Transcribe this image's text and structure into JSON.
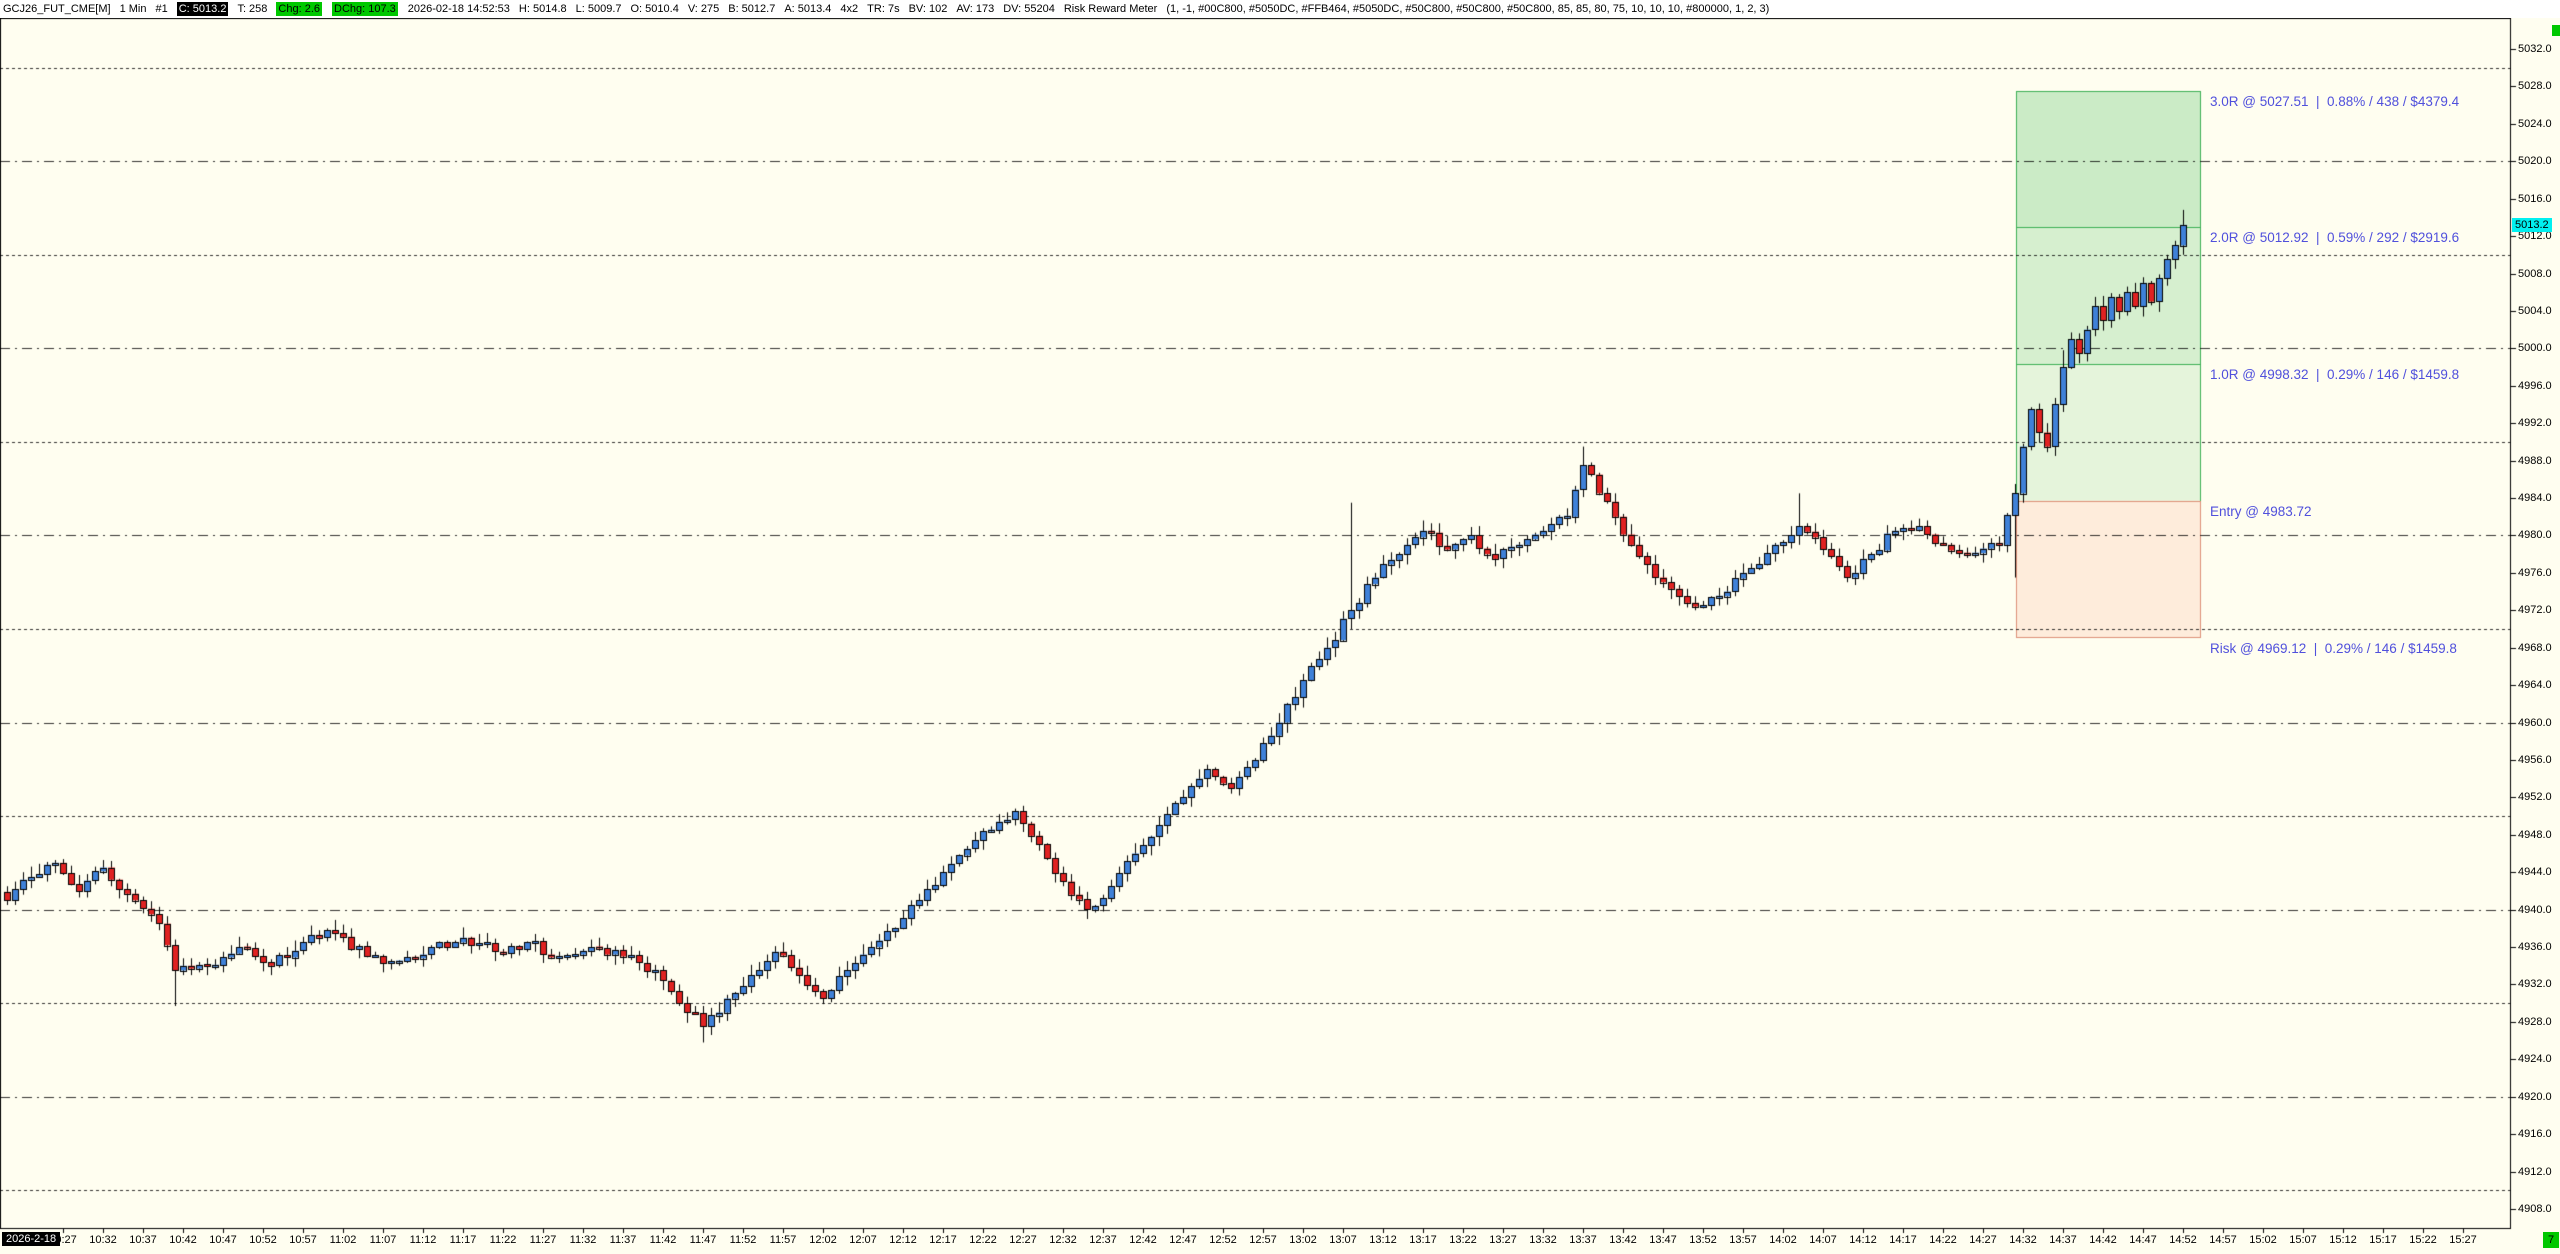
{
  "header": {
    "segments": [
      {
        "text": "GCJ26_FUT_CME[M]",
        "style": "plain"
      },
      {
        "text": "1 Min",
        "style": "plain"
      },
      {
        "text": "#1",
        "style": "plain"
      },
      {
        "text": "C: 5013.2",
        "style": "inverse"
      },
      {
        "text": "T: 258",
        "style": "plain"
      },
      {
        "text": "Chg: 2.6",
        "style": "green"
      },
      {
        "text": "DChg: 107.3",
        "style": "green"
      },
      {
        "text": "2026-02-18 14:52:53",
        "style": "plain"
      },
      {
        "text": "H: 5014.8",
        "style": "plain"
      },
      {
        "text": "L: 5009.7",
        "style": "plain"
      },
      {
        "text": "O: 5010.4",
        "style": "plain"
      },
      {
        "text": "V: 275",
        "style": "plain"
      },
      {
        "text": "B: 5012.7",
        "style": "plain"
      },
      {
        "text": "A: 5013.4",
        "style": "plain"
      },
      {
        "text": "4x2",
        "style": "plain"
      },
      {
        "text": "TR: 7s",
        "style": "plain"
      },
      {
        "text": "BV: 102",
        "style": "plain"
      },
      {
        "text": "AV: 173",
        "style": "plain"
      },
      {
        "text": "DV: 55204",
        "style": "plain"
      },
      {
        "text": "Risk Reward Meter",
        "style": "plain"
      },
      {
        "text": "(1, -1, #00C800, #5050DC, #FFB464, #5050DC, #50C800, #50C800, #50C800, 85, 85, 80, 75, 10, 10, 10, #800000, 1, 2, 3)",
        "style": "plain"
      }
    ]
  },
  "y_axis": {
    "current_price_label": "5013.2",
    "ticks": [
      "5032.0",
      "5028.0",
      "5024.0",
      "5020.0",
      "5016.0",
      "5012.0",
      "5008.0",
      "5004.0",
      "5000.0",
      "4996.0",
      "4992.0",
      "4988.0",
      "4984.0",
      "4980.0",
      "4976.0",
      "4972.0",
      "4968.0",
      "4964.0",
      "4960.0",
      "4956.0",
      "4952.0",
      "4948.0",
      "4944.0",
      "4940.0",
      "4936.0",
      "4932.0",
      "4928.0",
      "4924.0",
      "4920.0",
      "4916.0",
      "4912.0",
      "4908.0"
    ]
  },
  "x_axis": {
    "date_label": "2026-2-18",
    "countdown": "7",
    "time_ticks": [
      "10:27",
      "10:32",
      "10:37",
      "10:42",
      "10:47",
      "10:52",
      "10:57",
      "11:02",
      "11:07",
      "11:12",
      "11:17",
      "11:22",
      "11:27",
      "11:32",
      "11:37",
      "11:42",
      "11:47",
      "11:52",
      "11:57",
      "12:02",
      "12:07",
      "12:12",
      "12:17",
      "12:22",
      "12:27",
      "12:32",
      "12:37",
      "12:42",
      "12:47",
      "12:52",
      "12:57",
      "13:02",
      "13:07",
      "13:12",
      "13:17",
      "13:22",
      "13:27",
      "13:32",
      "13:37",
      "13:42",
      "13:47",
      "13:52",
      "13:57",
      "14:02",
      "14:07",
      "14:12",
      "14:17",
      "14:22",
      "14:27",
      "14:32",
      "14:37",
      "14:42",
      "14:47",
      "14:52",
      "14:57",
      "15:02",
      "15:07",
      "15:12",
      "15:17",
      "15:22",
      "15:27"
    ]
  },
  "risk_reward": {
    "entry_price": 4983.72,
    "risk_price": 4969.12,
    "r1_price": 4998.32,
    "r2_price": 5012.92,
    "r3_price": 5027.51,
    "labels": {
      "r3": "3.0R @ 5027.51  |  0.88% / 438 / $4379.4",
      "r2": "2.0R @ 5012.92  |  0.59% / 292 / $2919.6",
      "r1": "1.0R @ 4998.32  |  0.29% / 146 / $1459.8",
      "entry": "Entry @ 4983.72",
      "risk": "Risk @ 4969.12  |  0.29% / 146 / $1459.8"
    },
    "zone_fill_colors": [
      "rgba(70,185,90,0.14)",
      "rgba(70,185,90,0.22)",
      "rgba(70,185,90,0.28)"
    ],
    "zone_border_color": "#3CB054",
    "risk_fill_color": "rgba(250,130,95,0.14)",
    "risk_border_color": "#DD9078"
  },
  "chart_data": {
    "type": "candlestick",
    "title": "GCJ26_FUT_CME[M] 1 Min",
    "symbol": "GCJ26_FUT_CME[M]",
    "interval": "1 Min",
    "session_date": "2026-02-18",
    "first_bar_time": "10:20",
    "last_bar_time": "14:52",
    "bar_minutes": 1,
    "bar_count": 273,
    "last_close": 5013.2,
    "ohlc_last_bar": {
      "open": 5010.4,
      "high": 5014.8,
      "low": 5009.7,
      "close": 5013.2
    },
    "price_axis": {
      "min": 4906,
      "max": 5036,
      "tick_step": 4,
      "gridline_step": 10
    },
    "legend_position": "none",
    "grid": true,
    "close_waypoints": [
      [
        0,
        4941
      ],
      [
        3,
        4943.5
      ],
      [
        6,
        4945
      ],
      [
        9,
        4942
      ],
      [
        12,
        4944.5
      ],
      [
        16,
        4941
      ],
      [
        19,
        4938.5
      ],
      [
        21,
        4933.5
      ],
      [
        25,
        4934
      ],
      [
        29,
        4936
      ],
      [
        33,
        4934
      ],
      [
        37,
        4936.5
      ],
      [
        41,
        4937.5
      ],
      [
        45,
        4935
      ],
      [
        49,
        4934.5
      ],
      [
        53,
        4936
      ],
      [
        57,
        4937
      ],
      [
        61,
        4935.5
      ],
      [
        65,
        4936.5
      ],
      [
        69,
        4935
      ],
      [
        73,
        4936
      ],
      [
        77,
        4935
      ],
      [
        81,
        4933.5
      ],
      [
        84,
        4930
      ],
      [
        87,
        4927.5
      ],
      [
        90,
        4930.5
      ],
      [
        93,
        4933
      ],
      [
        96,
        4935.5
      ],
      [
        99,
        4933
      ],
      [
        102,
        4930.5
      ],
      [
        105,
        4933.5
      ],
      [
        108,
        4936
      ],
      [
        111,
        4938
      ],
      [
        114,
        4941
      ],
      [
        117,
        4944
      ],
      [
        120,
        4946.5
      ],
      [
        123,
        4948.5
      ],
      [
        126,
        4950.5
      ],
      [
        129,
        4947
      ],
      [
        132,
        4943
      ],
      [
        135,
        4940
      ],
      [
        138,
        4942.5
      ],
      [
        141,
        4946
      ],
      [
        144,
        4949
      ],
      [
        147,
        4952
      ],
      [
        150,
        4955
      ],
      [
        153,
        4953
      ],
      [
        156,
        4956
      ],
      [
        159,
        4960
      ],
      [
        162,
        4964.5
      ],
      [
        165,
        4968
      ],
      [
        168,
        4972
      ],
      [
        171,
        4975.5
      ],
      [
        174,
        4978
      ],
      [
        177,
        4980.5
      ],
      [
        180,
        4978.5
      ],
      [
        183,
        4980
      ],
      [
        186,
        4977.5
      ],
      [
        189,
        4979
      ],
      [
        192,
        4980.5
      ],
      [
        195,
        4982
      ],
      [
        197,
        4987.5
      ],
      [
        199,
        4984.5
      ],
      [
        201,
        4982
      ],
      [
        203,
        4979
      ],
      [
        206,
        4975.5
      ],
      [
        209,
        4973.5
      ],
      [
        212,
        4972.5
      ],
      [
        215,
        4974
      ],
      [
        218,
        4976.5
      ],
      [
        221,
        4979
      ],
      [
        224,
        4981
      ],
      [
        227,
        4978.5
      ],
      [
        230,
        4975.5
      ],
      [
        233,
        4978
      ],
      [
        236,
        4980.5
      ],
      [
        239,
        4981
      ],
      [
        242,
        4979
      ],
      [
        245,
        4978
      ],
      [
        249,
        4979
      ],
      [
        251,
        4984.5
      ],
      [
        252,
        4989.5
      ],
      [
        253,
        4993.5
      ],
      [
        254,
        4991
      ],
      [
        255,
        4989.5
      ],
      [
        256,
        4994
      ],
      [
        257,
        4998
      ],
      [
        258,
        5001
      ],
      [
        259,
        4999.5
      ],
      [
        260,
        5002
      ],
      [
        261,
        5004.5
      ],
      [
        262,
        5003
      ],
      [
        263,
        5005.5
      ],
      [
        264,
        5004
      ],
      [
        265,
        5006
      ],
      [
        266,
        5004.5
      ],
      [
        267,
        5007
      ],
      [
        268,
        5005
      ],
      [
        269,
        5007.5
      ],
      [
        270,
        5009.5
      ],
      [
        271,
        5011
      ],
      [
        272,
        5013.2
      ]
    ],
    "wick_spikes": [
      [
        21,
        "low",
        4929.7
      ],
      [
        87,
        "low",
        4925.8
      ],
      [
        168,
        "high",
        4983.5
      ],
      [
        197,
        "high",
        4989.5
      ],
      [
        224,
        "high",
        4984.5
      ],
      [
        251,
        "low",
        4975.5
      ],
      [
        257,
        "high",
        4999.8
      ],
      [
        272,
        "high",
        5014.8
      ]
    ],
    "up_color": "#3F81D8",
    "down_color": "#E02222",
    "outline_color": "#000000",
    "background_color": "#FFFEF0"
  }
}
